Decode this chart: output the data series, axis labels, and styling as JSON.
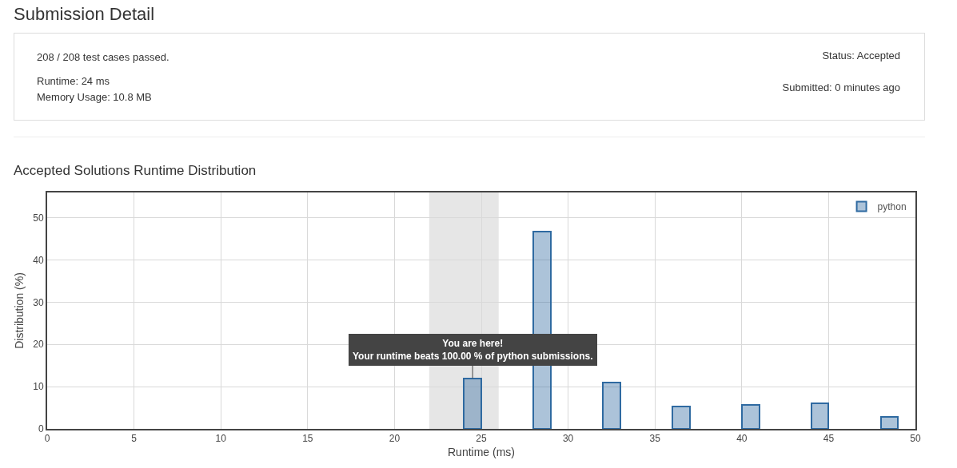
{
  "chart_data": [
    {
      "type": "other",
      "title": "Submission Detail",
      "annotations": [
        "208 / 208 test cases passed.",
        "Runtime: 24 ms",
        "Memory Usage: 10.8 MB",
        "Status: Accepted",
        "Submitted: 0 minutes ago"
      ]
    },
    {
      "type": "bar",
      "title": "Accepted Solutions Runtime Distribution",
      "xlabel": "Runtime (ms)",
      "ylabel": "Distribution (%)",
      "x": [
        24.5,
        28.5,
        32.5,
        36.5,
        40.5,
        44.5,
        48.5
      ],
      "series": [
        {
          "name": "python",
          "color": "#2f6aa1",
          "values": [
            12,
            46.8,
            11,
            5.3,
            5.7,
            6.1,
            2.9
          ]
        }
      ],
      "xlim": [
        0,
        50
      ],
      "xticks": [
        0,
        5,
        10,
        15,
        20,
        25,
        30,
        35,
        40,
        45,
        50
      ],
      "ylim": [
        0,
        56
      ],
      "yticks": [
        0,
        10,
        20,
        30,
        40,
        50
      ],
      "grid": true,
      "legend": "top right",
      "bands": [
        {
          "axis": "x",
          "from": 22,
          "to": 26,
          "color": "#e6e6e6"
        }
      ],
      "annotations": [
        {
          "text": "You are here!\nYour runtime beats 100.00 % of python submissions.",
          "x": 24.5,
          "y": 12
        }
      ]
    }
  ]
}
